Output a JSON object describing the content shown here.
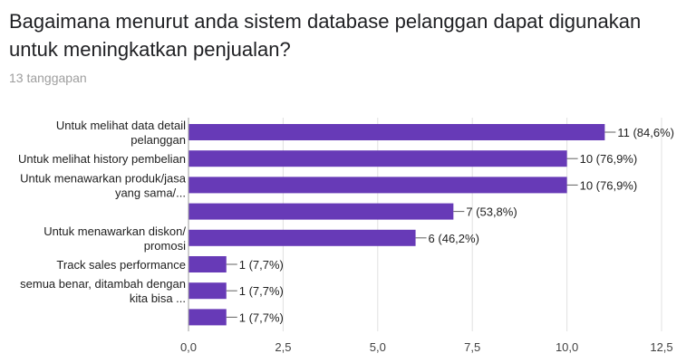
{
  "question": {
    "title": "Bagaimana menurut anda sistem database pelanggan dapat digunakan untuk meningkatkan penjualan?",
    "response_count": "13 tanggapan"
  },
  "colors": {
    "bar": "#673ab7",
    "grid": "#e0e0e0",
    "axis_text": "#424242",
    "label_text": "#212121"
  },
  "chart_data": {
    "type": "bar",
    "orientation": "horizontal",
    "categories": [
      [
        "Untuk melihat data detail",
        "pelanggan"
      ],
      [
        "Untuk melihat history pembelian"
      ],
      [
        "Untuk menawarkan produk/jasa",
        "yang sama/..."
      ],
      [
        ""
      ],
      [
        "Untuk menawarkan diskon/",
        "promosi"
      ],
      [
        "Track sales performance"
      ],
      [
        "semua benar, ditambah dengan",
        "kita bisa ..."
      ],
      [
        ""
      ]
    ],
    "values": [
      11,
      10,
      10,
      7,
      6,
      1,
      1,
      1
    ],
    "value_labels": [
      "11 (84,6%)",
      "10 (76,9%)",
      "10 (76,9%)",
      "7 (53,8%)",
      "6 (46,2%)",
      "1 (7,7%)",
      "1 (7,7%)",
      "1 (7,7%)"
    ],
    "xlim": [
      0,
      12.5
    ],
    "xticks": [
      "0,0",
      "2,5",
      "5,0",
      "7,5",
      "10,0",
      "12,5"
    ],
    "xtick_values": [
      0,
      2.5,
      5,
      7.5,
      10,
      12.5
    ],
    "grid": true,
    "legend": "none"
  }
}
